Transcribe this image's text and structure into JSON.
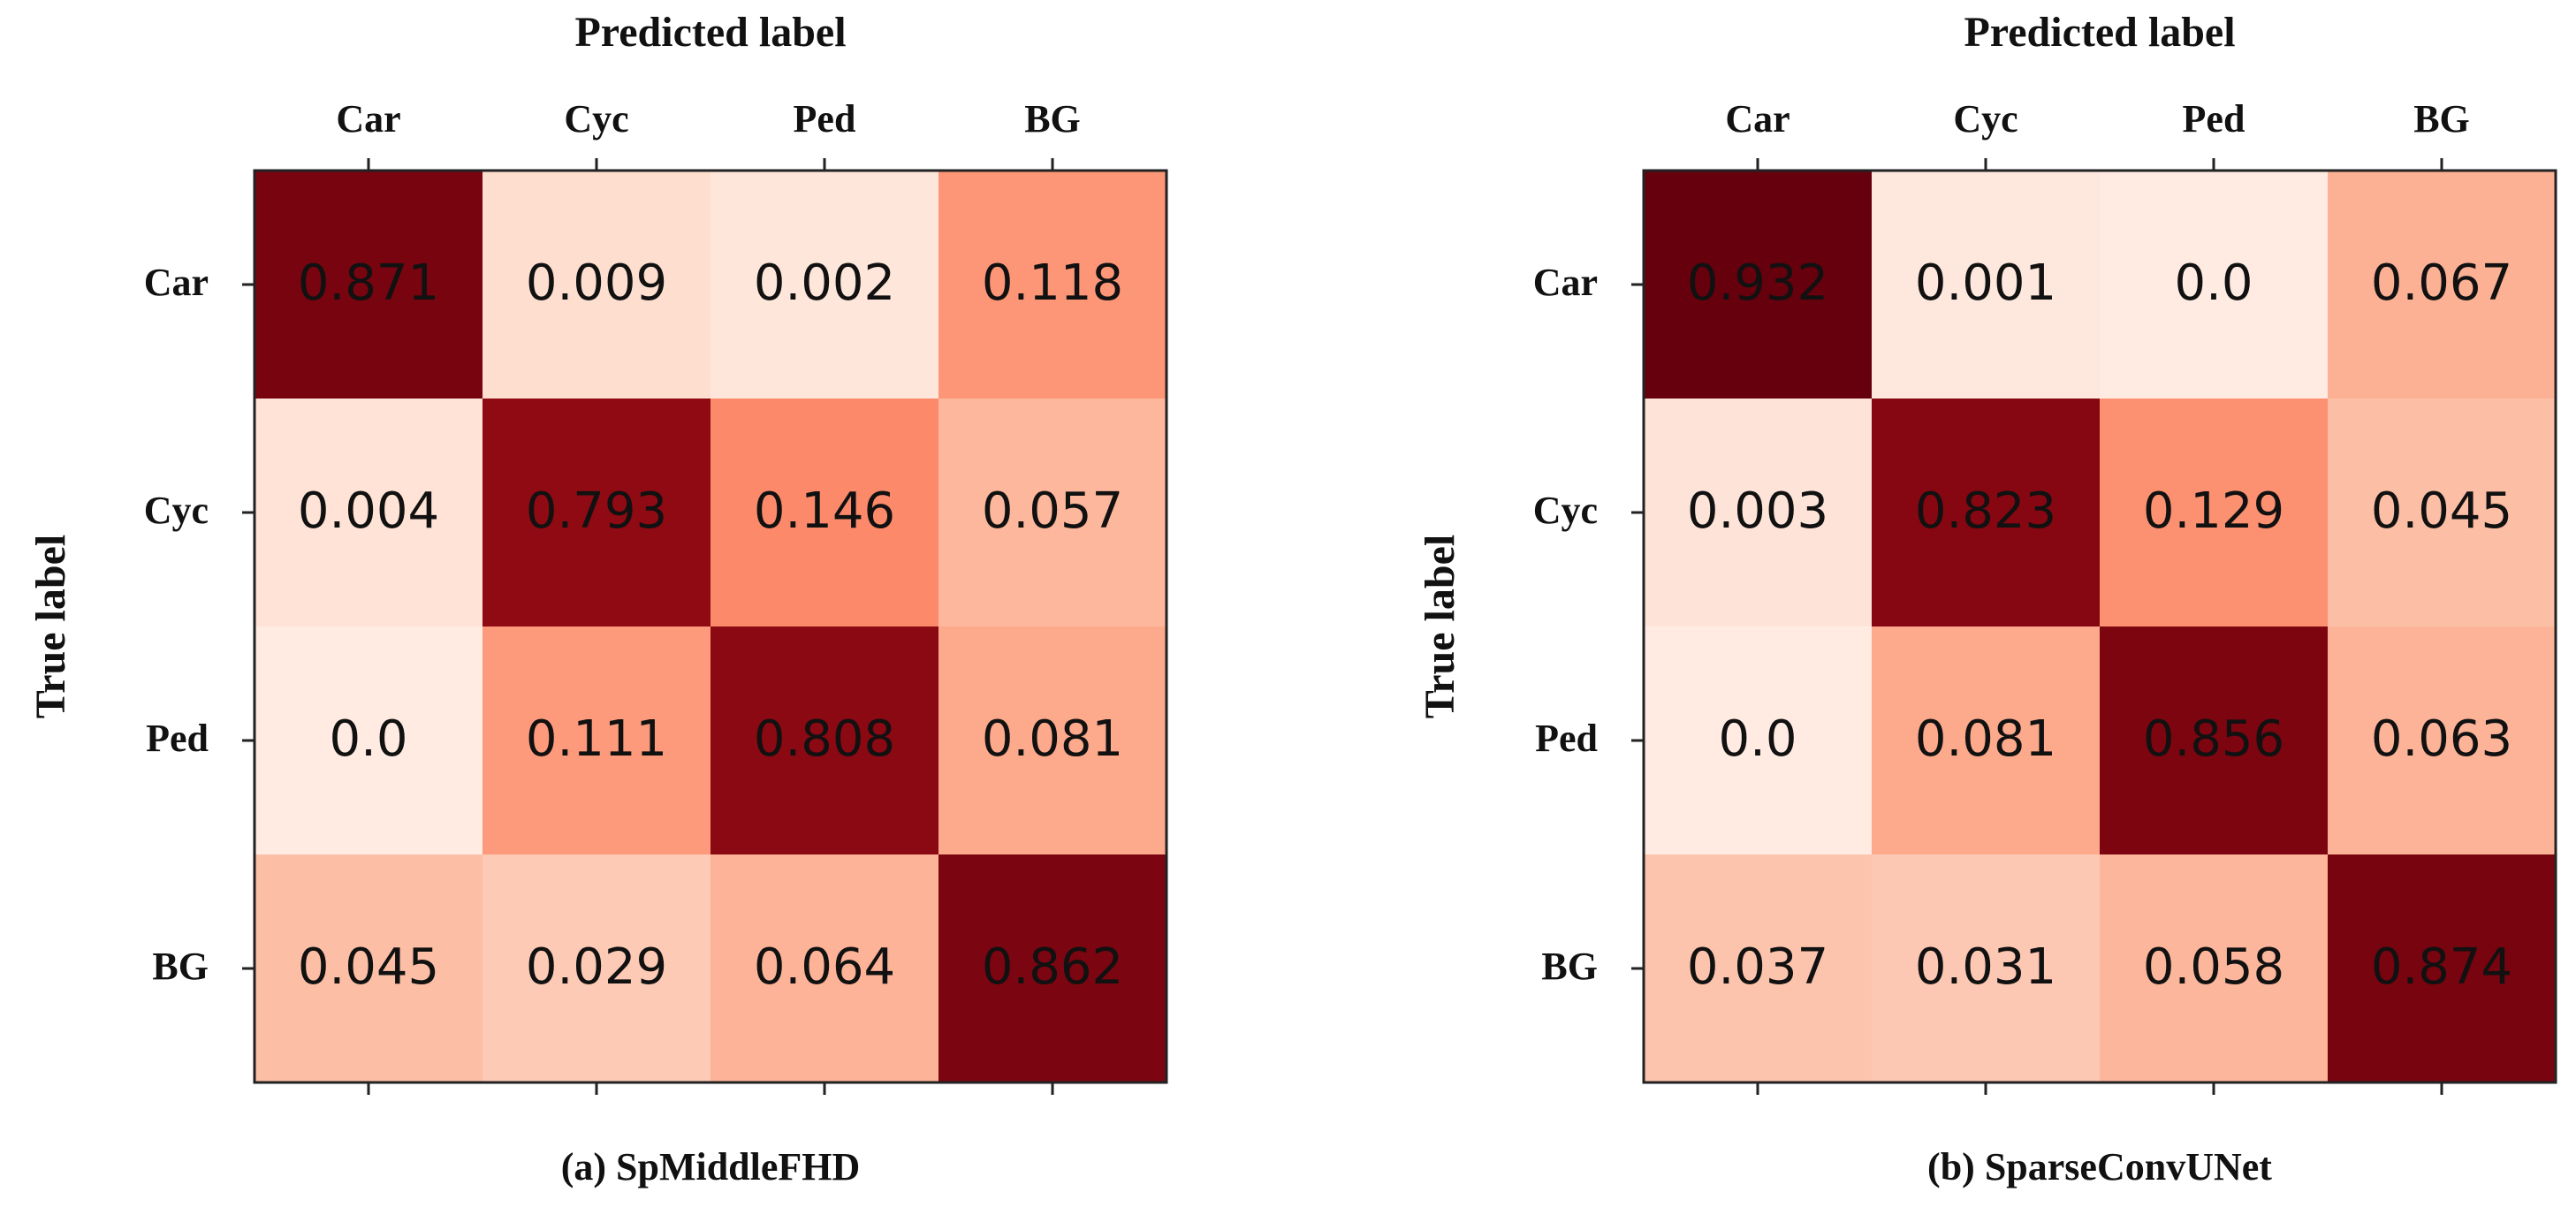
{
  "chart_data": [
    {
      "type": "heatmap",
      "xlabel": "Predicted label",
      "ylabel": "True label",
      "caption": "(a) SpMiddleFHD",
      "x_categories": [
        "Car",
        "Cyc",
        "Ped",
        "BG"
      ],
      "y_categories": [
        "Car",
        "Cyc",
        "Ped",
        "BG"
      ],
      "values": [
        [
          0.871,
          0.009,
          0.002,
          0.118
        ],
        [
          0.004,
          0.793,
          0.146,
          0.057
        ],
        [
          0.0,
          0.111,
          0.808,
          0.081
        ],
        [
          0.045,
          0.029,
          0.064,
          0.862
        ]
      ],
      "labels": [
        [
          "0.871",
          "0.009",
          "0.002",
          "0.118"
        ],
        [
          "0.004",
          "0.793",
          "0.146",
          "0.057"
        ],
        [
          "0.0",
          "0.111",
          "0.808",
          "0.081"
        ],
        [
          "0.045",
          "0.029",
          "0.064",
          "0.862"
        ]
      ],
      "colormap": "Reds",
      "vmin": 0.0,
      "vmax": 0.932
    },
    {
      "type": "heatmap",
      "xlabel": "Predicted label",
      "ylabel": "True label",
      "caption": "(b) SparseConvUNet",
      "x_categories": [
        "Car",
        "Cyc",
        "Ped",
        "BG"
      ],
      "y_categories": [
        "Car",
        "Cyc",
        "Ped",
        "BG"
      ],
      "values": [
        [
          0.932,
          0.001,
          0.0,
          0.067
        ],
        [
          0.003,
          0.823,
          0.129,
          0.045
        ],
        [
          0.0,
          0.081,
          0.856,
          0.063
        ],
        [
          0.037,
          0.031,
          0.058,
          0.874
        ]
      ],
      "labels": [
        [
          "0.932",
          "0.001",
          "0.0",
          "0.067"
        ],
        [
          "0.003",
          "0.823",
          "0.129",
          "0.045"
        ],
        [
          "0.0",
          "0.081",
          "0.856",
          "0.063"
        ],
        [
          "0.037",
          "0.031",
          "0.058",
          "0.874"
        ]
      ],
      "colormap": "Reds",
      "vmin": 0.0,
      "vmax": 0.932
    }
  ]
}
